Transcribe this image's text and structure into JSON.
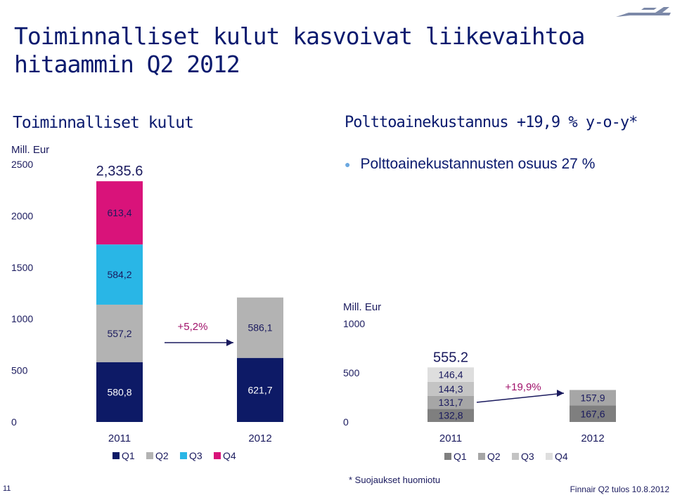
{
  "title": "Toiminnalliset kulut kasvoivat liikevaihtoa hitaammin Q2 2012",
  "left_heading": "Toiminnalliset kulut",
  "right_heading": "Polttoainekustannus +19,9 % y-o-y*",
  "bullet": "Polttoainekustannusten osuus 27 %",
  "footnote": "* Suojaukset huomiotu",
  "slide_number": "11",
  "footer": "Finnair Q2 tulos 10.8.2012",
  "colors": {
    "q1": "#0d1a66",
    "q2": "#b3b3b3",
    "q3": "#29b6e6",
    "q4": "#d9137a",
    "arrow": "#1a1a5e",
    "growth": "#a0116a"
  },
  "chart_data": [
    {
      "type": "bar",
      "stacked": true,
      "unit_label": "Mill. Eur",
      "categories": [
        "2011",
        "2012"
      ],
      "series": [
        {
          "name": "Q1",
          "values": [
            580.8,
            621.7
          ],
          "labels": [
            "580,8",
            "621,7"
          ]
        },
        {
          "name": "Q2",
          "values": [
            557.2,
            586.1
          ],
          "labels": [
            "557,2",
            "586,1"
          ]
        },
        {
          "name": "Q3",
          "values": [
            584.2,
            null
          ],
          "labels": [
            "584,2",
            ""
          ]
        },
        {
          "name": "Q4",
          "values": [
            613.4,
            null
          ],
          "labels": [
            "613,4",
            ""
          ]
        }
      ],
      "totals": [
        "2,335.6",
        ""
      ],
      "growth_label": "+5,2%",
      "ylim": [
        0,
        2500
      ],
      "yticks": [
        "0",
        "500",
        "1000",
        "1500",
        "2000",
        "2500"
      ],
      "legend": [
        "Q1",
        "Q2",
        "Q3",
        "Q4"
      ],
      "legend_position": "bottom"
    },
    {
      "type": "bar",
      "stacked": true,
      "unit_label": "Mill. Eur",
      "categories": [
        "2011",
        "2012"
      ],
      "series": [
        {
          "name": "Q1",
          "values": [
            132.8,
            167.6
          ],
          "labels": [
            "132,8",
            "167,6"
          ]
        },
        {
          "name": "Q2",
          "values": [
            131.7,
            157.9
          ],
          "labels": [
            "131,7",
            "157,9"
          ]
        },
        {
          "name": "Q3",
          "values": [
            144.3,
            null
          ],
          "labels": [
            "144,3",
            ""
          ]
        },
        {
          "name": "Q4",
          "values": [
            146.4,
            null
          ],
          "labels": [
            "146,4",
            ""
          ]
        }
      ],
      "totals": [
        "555.2",
        ""
      ],
      "growth_label": "+19,9%",
      "ylim": [
        0,
        1000
      ],
      "yticks": [
        "0",
        "500",
        "1000"
      ],
      "legend": [
        "Q1",
        "Q2",
        "Q3",
        "Q4"
      ],
      "legend_position": "bottom",
      "colors": [
        "#7f7f7f",
        "#a6a6a6",
        "#c4c4c4",
        "#dedede"
      ]
    }
  ]
}
